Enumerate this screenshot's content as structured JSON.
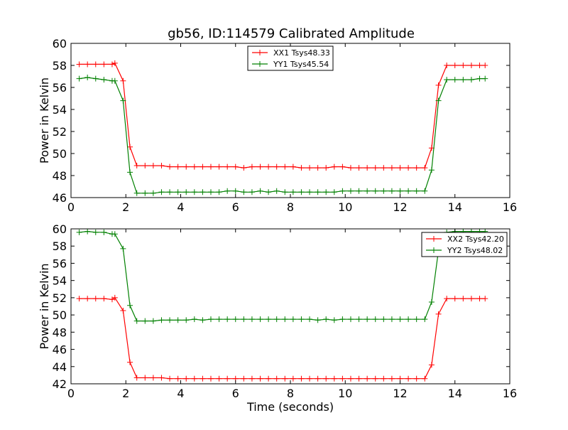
{
  "figure": {
    "title": "gb56, ID:114579 Calibrated Amplitude"
  },
  "chart_data": [
    {
      "type": "line",
      "title": "gb56, ID:114579 Calibrated Amplitude",
      "xlabel": "",
      "ylabel": "Power in Kelvin",
      "xlim": [
        0,
        16
      ],
      "ylim": [
        46,
        60
      ],
      "xticks": [
        0,
        2,
        4,
        6,
        8,
        10,
        12,
        14,
        16
      ],
      "yticks": [
        46,
        48,
        50,
        52,
        54,
        56,
        58,
        60
      ],
      "grid": false,
      "legend_position": "top-center",
      "x": [
        0.3,
        0.6,
        0.9,
        1.2,
        1.5,
        1.6,
        1.9,
        2.15,
        2.4,
        2.7,
        3.0,
        3.3,
        3.6,
        3.9,
        4.2,
        4.5,
        4.8,
        5.1,
        5.4,
        5.7,
        6.0,
        6.3,
        6.6,
        6.9,
        7.2,
        7.5,
        7.8,
        8.1,
        8.4,
        8.7,
        9.0,
        9.3,
        9.6,
        9.9,
        10.2,
        10.5,
        10.8,
        11.1,
        11.4,
        11.7,
        12.0,
        12.3,
        12.6,
        12.9,
        13.15,
        13.4,
        13.7,
        14.0,
        14.3,
        14.6,
        14.9,
        15.1
      ],
      "series": [
        {
          "name": "XX1 Tsys48.33",
          "color": "#ff0000",
          "values": [
            58.1,
            58.1,
            58.1,
            58.1,
            58.1,
            58.2,
            56.6,
            50.6,
            48.9,
            48.9,
            48.9,
            48.9,
            48.8,
            48.8,
            48.8,
            48.8,
            48.8,
            48.8,
            48.8,
            48.8,
            48.8,
            48.7,
            48.8,
            48.8,
            48.8,
            48.8,
            48.8,
            48.8,
            48.7,
            48.7,
            48.7,
            48.7,
            48.8,
            48.8,
            48.7,
            48.7,
            48.7,
            48.7,
            48.7,
            48.7,
            48.7,
            48.7,
            48.7,
            48.7,
            50.5,
            56.2,
            58.0,
            58.0,
            58.0,
            58.0,
            58.0,
            58.0
          ]
        },
        {
          "name": "YY1 Tsys45.54",
          "color": "#008000",
          "values": [
            56.8,
            56.9,
            56.8,
            56.7,
            56.6,
            56.6,
            54.8,
            48.3,
            46.4,
            46.4,
            46.4,
            46.5,
            46.5,
            46.5,
            46.5,
            46.5,
            46.5,
            46.5,
            46.5,
            46.6,
            46.6,
            46.5,
            46.5,
            46.6,
            46.5,
            46.6,
            46.5,
            46.5,
            46.5,
            46.5,
            46.5,
            46.5,
            46.5,
            46.6,
            46.6,
            46.6,
            46.6,
            46.6,
            46.6,
            46.6,
            46.6,
            46.6,
            46.6,
            46.6,
            48.5,
            54.8,
            56.7,
            56.7,
            56.7,
            56.7,
            56.8,
            56.8
          ]
        }
      ]
    },
    {
      "type": "line",
      "title": "",
      "xlabel": "Time (seconds)",
      "ylabel": "Power in Kelvin",
      "xlim": [
        0,
        16
      ],
      "ylim": [
        42,
        60
      ],
      "xticks": [
        0,
        2,
        4,
        6,
        8,
        10,
        12,
        14,
        16
      ],
      "yticks": [
        42,
        44,
        46,
        48,
        50,
        52,
        54,
        56,
        58,
        60
      ],
      "grid": false,
      "legend_position": "top-right",
      "x": [
        0.3,
        0.6,
        0.9,
        1.2,
        1.5,
        1.6,
        1.9,
        2.15,
        2.4,
        2.7,
        3.0,
        3.3,
        3.6,
        3.9,
        4.2,
        4.5,
        4.8,
        5.1,
        5.4,
        5.7,
        6.0,
        6.3,
        6.6,
        6.9,
        7.2,
        7.5,
        7.8,
        8.1,
        8.4,
        8.7,
        9.0,
        9.3,
        9.6,
        9.9,
        10.2,
        10.5,
        10.8,
        11.1,
        11.4,
        11.7,
        12.0,
        12.3,
        12.6,
        12.9,
        13.15,
        13.4,
        13.7,
        14.0,
        14.3,
        14.6,
        14.9,
        15.1
      ],
      "series": [
        {
          "name": "XX2 Tsys42.20",
          "color": "#ff0000",
          "values": [
            51.9,
            51.9,
            51.9,
            51.9,
            51.8,
            52.0,
            50.5,
            44.5,
            42.7,
            42.7,
            42.7,
            42.7,
            42.6,
            42.6,
            42.6,
            42.6,
            42.6,
            42.6,
            42.6,
            42.6,
            42.6,
            42.6,
            42.6,
            42.6,
            42.6,
            42.6,
            42.6,
            42.6,
            42.6,
            42.6,
            42.6,
            42.6,
            42.6,
            42.6,
            42.6,
            42.6,
            42.6,
            42.6,
            42.6,
            42.6,
            42.6,
            42.6,
            42.6,
            42.6,
            44.2,
            50.1,
            51.9,
            51.9,
            51.9,
            51.9,
            51.9,
            51.9
          ]
        },
        {
          "name": "YY2 Tsys48.02",
          "color": "#008000",
          "values": [
            59.6,
            59.7,
            59.6,
            59.6,
            59.4,
            59.4,
            57.7,
            51.1,
            49.3,
            49.3,
            49.3,
            49.4,
            49.4,
            49.4,
            49.4,
            49.5,
            49.4,
            49.5,
            49.5,
            49.5,
            49.5,
            49.5,
            49.5,
            49.5,
            49.5,
            49.5,
            49.5,
            49.5,
            49.5,
            49.5,
            49.4,
            49.5,
            49.4,
            49.5,
            49.5,
            49.5,
            49.5,
            49.5,
            49.5,
            49.5,
            49.5,
            49.5,
            49.5,
            49.5,
            51.5,
            57.5,
            59.6,
            59.7,
            59.7,
            59.7,
            59.7,
            59.7
          ]
        }
      ]
    }
  ]
}
